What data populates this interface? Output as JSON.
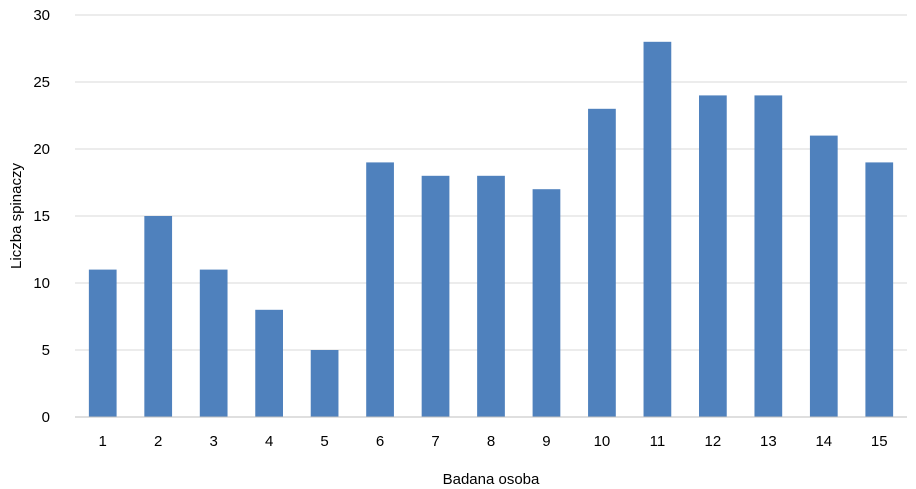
{
  "chart_data": {
    "type": "bar",
    "categories": [
      "1",
      "2",
      "3",
      "4",
      "5",
      "6",
      "7",
      "8",
      "9",
      "10",
      "11",
      "12",
      "13",
      "14",
      "15"
    ],
    "values": [
      11,
      15,
      11,
      8,
      5,
      19,
      18,
      18,
      17,
      23,
      28,
      24,
      24,
      21,
      19
    ],
    "xlabel": "Badana osoba",
    "ylabel": "Liczba spinaczy",
    "ylim": [
      0,
      30
    ],
    "yticks": [
      "0",
      "5",
      "10",
      "15",
      "20",
      "25",
      "30"
    ],
    "grid": true,
    "bar_color": "#4f81bd"
  }
}
